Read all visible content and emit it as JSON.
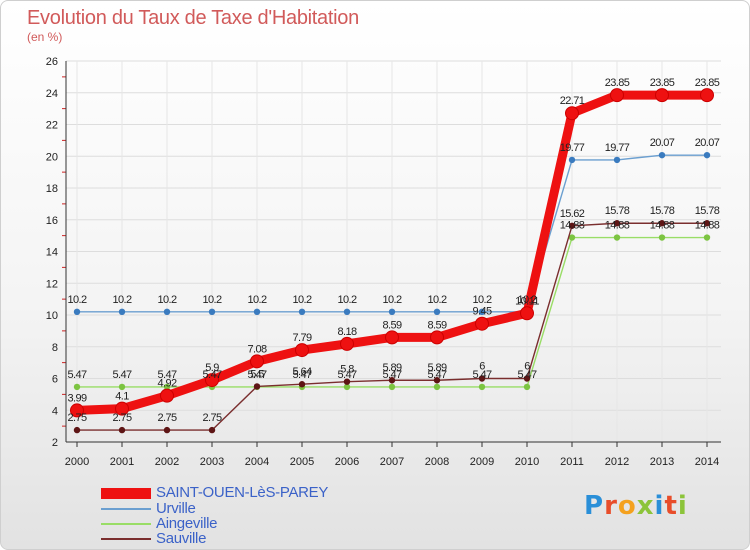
{
  "title": "Evolution du Taux de Taxe d'Habitation",
  "unit_label": "(en %)",
  "logo": {
    "letters": [
      "P",
      "r",
      "o",
      "x",
      "i",
      "t",
      "i"
    ],
    "colors": [
      "#2a8fd8",
      "#e84d2a",
      "#f4a11e",
      "#8cc43a",
      "#2a8fd8",
      "#e84d2a",
      "#8cc43a"
    ]
  },
  "chart_data": {
    "type": "line",
    "title": "Evolution du Taux de Taxe d'Habitation",
    "ylabel": "(en %)",
    "xlabel": "",
    "ylim": [
      2,
      26
    ],
    "yticks": [
      "2",
      "4",
      "6",
      "8",
      "10",
      "12",
      "14",
      "16",
      "18",
      "20",
      "22",
      "24",
      "26"
    ],
    "x": [
      "2000",
      "2001",
      "2002",
      "2003",
      "2004",
      "2005",
      "2006",
      "2007",
      "2008",
      "2009",
      "2010",
      "2011",
      "2012",
      "2013",
      "2014"
    ],
    "series": [
      {
        "name": "SAINT-OUEN-LèS-PAREY",
        "color": "#ee1111",
        "marker": "#ee1111",
        "emphasis": true,
        "values": [
          3.99,
          4.1,
          4.92,
          5.9,
          7.08,
          7.79,
          8.18,
          8.59,
          8.59,
          9.45,
          10.11,
          22.71,
          23.85,
          23.85,
          23.85
        ],
        "labels": [
          "3.99",
          "4.1",
          "4.92",
          "5.9",
          "7.08",
          "7.79",
          "8.18",
          "8.59",
          "8.59",
          "9.45",
          "10.11",
          "22.71",
          "23.85",
          "23.85",
          "23.85"
        ]
      },
      {
        "name": "Urville",
        "color": "#6b9fd0",
        "marker": "#3a7bbf",
        "emphasis": false,
        "values": [
          10.2,
          10.2,
          10.2,
          10.2,
          10.2,
          10.2,
          10.2,
          10.2,
          10.2,
          10.2,
          10.2,
          19.77,
          19.77,
          20.07,
          20.07
        ],
        "labels": [
          "10.2",
          "10.2",
          "10.2",
          "10.2",
          "10.2",
          "10.2",
          "10.2",
          "10.2",
          "10.2",
          "10.2",
          "10.2",
          "19.77",
          "19.77",
          "20.07",
          "20.07"
        ]
      },
      {
        "name": "Aingeville",
        "color": "#99dd66",
        "marker": "#7cc441",
        "emphasis": false,
        "values": [
          5.47,
          5.47,
          5.47,
          5.47,
          5.47,
          5.47,
          5.47,
          5.47,
          5.47,
          5.47,
          5.47,
          14.88,
          14.88,
          14.88,
          14.88
        ],
        "labels": [
          "5.47",
          "5.47",
          "5.47",
          "5.47",
          "5.47",
          "5.47",
          "5.47",
          "5.47",
          "5.47",
          "5.47",
          "5.47",
          "14.88",
          "14.88",
          "14.88",
          "14.88"
        ]
      },
      {
        "name": "Sauville",
        "color": "#7a2e2e",
        "marker": "#5e1515",
        "emphasis": false,
        "values": [
          2.75,
          2.75,
          2.75,
          2.75,
          5.5,
          5.64,
          5.8,
          5.89,
          5.89,
          6,
          6,
          15.62,
          15.78,
          15.78,
          15.78
        ],
        "labels": [
          "2.75",
          "2.75",
          "2.75",
          "2.75",
          "5.5",
          "5.64",
          "5.8",
          "5.89",
          "5.89",
          "6",
          "6",
          "15.62",
          "15.78",
          "15.78",
          "15.78"
        ]
      }
    ]
  }
}
